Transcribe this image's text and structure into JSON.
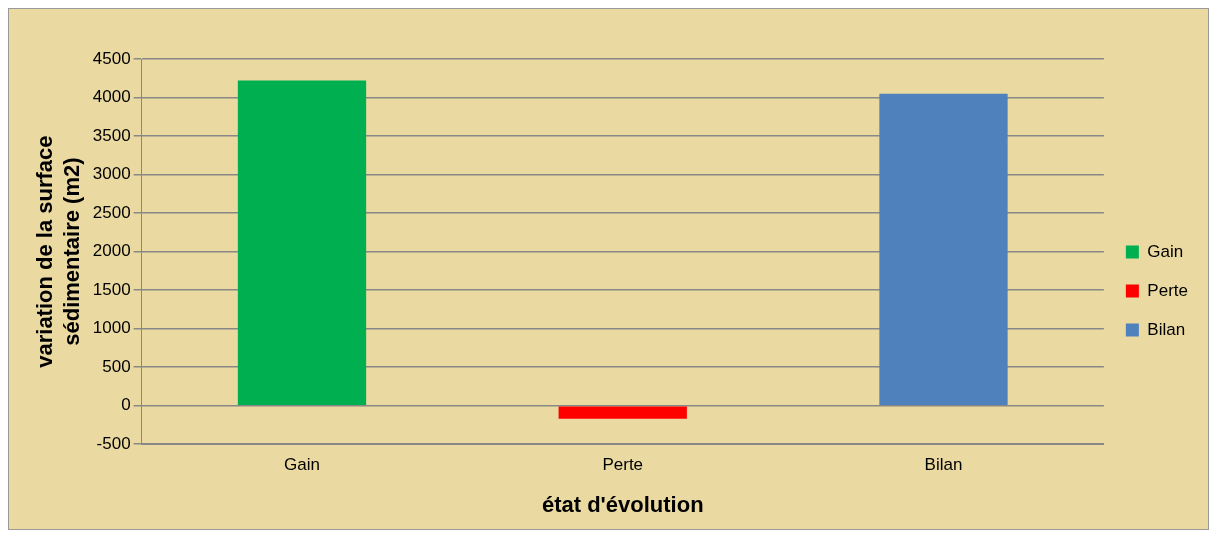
{
  "chart_data": {
    "type": "bar",
    "xlabel": "état d'évolution",
    "ylabel": "variation de la surface sédimentaire (m2)",
    "categories": [
      "Gain",
      "Perte",
      "Bilan"
    ],
    "series": [
      {
        "name": "Gain",
        "color": "#00b050",
        "values": [
          4220,
          null,
          null
        ]
      },
      {
        "name": "Perte",
        "color": "#ff0000",
        "values": [
          null,
          -170,
          null
        ]
      },
      {
        "name": "Bilan",
        "color": "#4f81bd",
        "values": [
          null,
          null,
          4050
        ]
      }
    ],
    "ylim": [
      -500,
      4500
    ],
    "yticks": [
      -500,
      0,
      500,
      1000,
      1500,
      2000,
      2500,
      3000,
      3500,
      4000,
      4500
    ],
    "grid": "y",
    "legend": "right"
  }
}
